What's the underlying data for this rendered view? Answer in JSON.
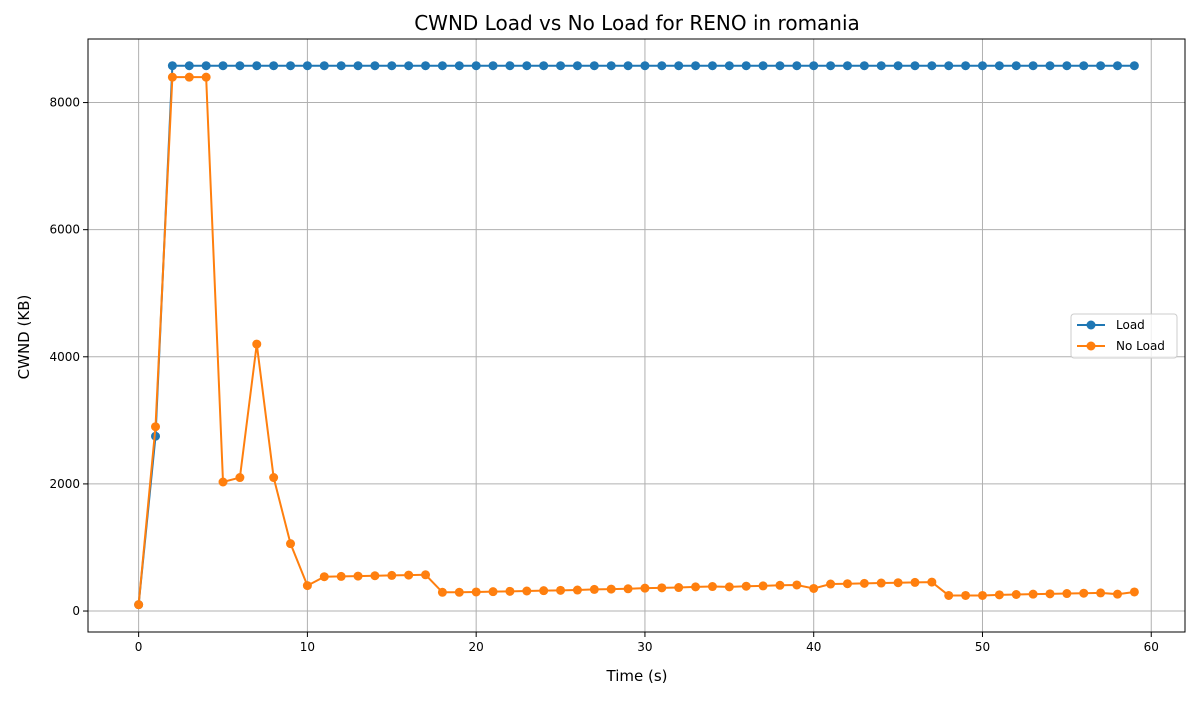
{
  "chart_data": {
    "type": "line",
    "title": "CWND Load vs No Load for RENO in romania",
    "xlabel": "Time (s)",
    "ylabel": "CWND (KB)",
    "xlim": [
      -3,
      62
    ],
    "ylim": [
      -330,
      9000
    ],
    "xticks": [
      0,
      10,
      20,
      30,
      40,
      50,
      60
    ],
    "yticks": [
      0,
      2000,
      4000,
      6000,
      8000
    ],
    "grid": true,
    "legend_position": "center-right",
    "markers": "circle",
    "x": [
      0,
      1,
      2,
      3,
      4,
      5,
      6,
      7,
      8,
      9,
      10,
      11,
      12,
      13,
      14,
      15,
      16,
      17,
      18,
      19,
      20,
      21,
      22,
      23,
      24,
      25,
      26,
      27,
      28,
      29,
      30,
      31,
      32,
      33,
      34,
      35,
      36,
      37,
      38,
      39,
      40,
      41,
      42,
      43,
      44,
      45,
      46,
      47,
      48,
      49,
      50,
      51,
      52,
      53,
      54,
      55,
      56,
      57,
      58,
      59
    ],
    "series": [
      {
        "name": "Load",
        "color": "#1f77b4",
        "values": [
          100,
          2750,
          8580,
          8580,
          8580,
          8580,
          8580,
          8580,
          8580,
          8580,
          8580,
          8580,
          8580,
          8580,
          8580,
          8580,
          8580,
          8580,
          8580,
          8580,
          8580,
          8580,
          8580,
          8580,
          8580,
          8580,
          8580,
          8580,
          8580,
          8580,
          8580,
          8580,
          8580,
          8580,
          8580,
          8580,
          8580,
          8580,
          8580,
          8580,
          8580,
          8580,
          8580,
          8580,
          8580,
          8580,
          8580,
          8580,
          8580,
          8580,
          8580,
          8580,
          8580,
          8580,
          8580,
          8580,
          8580,
          8580,
          8580,
          8580
        ]
      },
      {
        "name": "No Load",
        "color": "#ff7f0e",
        "values": [
          100,
          2900,
          8400,
          8400,
          8400,
          2030,
          2100,
          4200,
          2100,
          1060,
          400,
          540,
          545,
          550,
          555,
          560,
          565,
          570,
          295,
          295,
          300,
          305,
          310,
          315,
          320,
          325,
          330,
          340,
          345,
          350,
          360,
          365,
          370,
          380,
          385,
          380,
          390,
          395,
          405,
          410,
          355,
          425,
          430,
          435,
          440,
          445,
          450,
          455,
          245,
          245,
          245,
          255,
          260,
          265,
          270,
          275,
          280,
          285,
          265,
          300
        ]
      }
    ]
  }
}
